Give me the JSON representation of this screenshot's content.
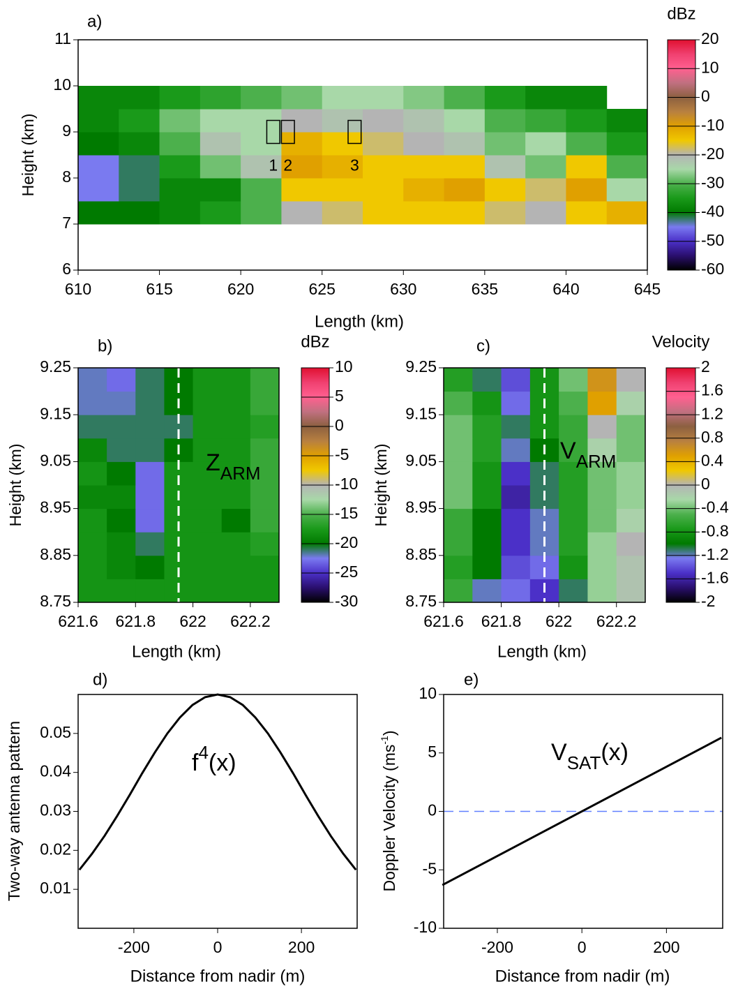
{
  "chart_data": [
    {
      "type": "heatmap",
      "label": "a)",
      "xlabel": "Length (km)",
      "ylabel": "Height (km)",
      "x": [
        611.25,
        613.75,
        616.25,
        618.75,
        621.25,
        623.75,
        626.25,
        628.75,
        631.25,
        633.75,
        636.25,
        638.75,
        641.25,
        643.75
      ],
      "y": [
        7.25,
        7.75,
        8.25,
        8.75,
        9.25,
        9.75
      ],
      "z": [
        [
          -40,
          -40,
          -38,
          -35,
          -30,
          -20,
          -18,
          -15,
          -15,
          -15,
          -18,
          -20,
          -15,
          -12
        ],
        [
          -45,
          -42,
          -38,
          -38,
          -30,
          -15,
          -15,
          -15,
          -12,
          -10,
          -15,
          -18,
          -10,
          -25
        ],
        [
          -45,
          -42,
          -35,
          -28,
          -22,
          -10,
          -12,
          -15,
          -15,
          -15,
          -22,
          -28,
          -15,
          -30
        ],
        [
          -40,
          -38,
          -30,
          -22,
          -25,
          -12,
          -15,
          -18,
          -20,
          -22,
          -28,
          -25,
          -30,
          -35
        ],
        [
          -38,
          -35,
          -28,
          -25,
          -25,
          -20,
          -22,
          -20,
          -22,
          -25,
          -30,
          -32,
          -35,
          -38
        ],
        [
          -38,
          -38,
          -35,
          -33,
          -30,
          -28,
          -25,
          -25,
          -27,
          -30,
          -35,
          -38,
          -38,
          null
        ]
      ],
      "xlim": [
        610,
        645
      ],
      "ylim": [
        6,
        11
      ],
      "xticks": [
        610,
        615,
        620,
        625,
        630,
        635,
        640,
        645
      ],
      "yticks": [
        6,
        7,
        8,
        9,
        10,
        11
      ],
      "boxes": [
        {
          "label": "1",
          "xlim": [
            621.6,
            622.4
          ],
          "ylim": [
            8.75,
            9.25
          ]
        },
        {
          "label": "2",
          "xlim": [
            622.5,
            623.3
          ],
          "ylim": [
            8.75,
            9.25
          ]
        },
        {
          "label": "3",
          "xlim": [
            626.6,
            627.4
          ],
          "ylim": [
            8.75,
            9.25
          ]
        }
      ],
      "colorbar": {
        "label": "dBz",
        "lim": [
          -60,
          20
        ],
        "ticks": [
          -60,
          -50,
          -40,
          -30,
          -20,
          -10,
          0,
          10,
          20
        ],
        "colors": [
          "#000000",
          "#2a0f6e",
          "#4b30c8",
          "#7a7af0",
          "#007a00",
          "#1a9a1a",
          "#4cb04c",
          "#a8d8a8",
          "#b4b4b4",
          "#f0c800",
          "#e0a000",
          "#b88040",
          "#8c6040",
          "#c07080",
          "#ff6090",
          "#f04070",
          "#e01030"
        ]
      }
    },
    {
      "type": "heatmap",
      "label": "b)",
      "xlabel": "Length (km)",
      "ylabel": "Height (km)",
      "annotation": {
        "base": "Z",
        "sub": "ARM"
      },
      "x": [
        621.65,
        621.75,
        621.85,
        621.95,
        622.05,
        622.15,
        622.25
      ],
      "y": [
        8.775,
        8.825,
        8.875,
        8.925,
        8.975,
        9.025,
        9.075,
        9.125,
        9.175,
        9.225
      ],
      "z": [
        [
          -18,
          -18,
          -18,
          -18,
          -18,
          -18,
          -18
        ],
        [
          -18,
          -19,
          -20,
          -18,
          -18,
          -18,
          -18
        ],
        [
          -18,
          -19,
          -21,
          -18,
          -18,
          -18,
          -17
        ],
        [
          -18,
          -20,
          -23,
          -18,
          -18,
          -20,
          -16
        ],
        [
          -19,
          -19,
          -23,
          -18,
          -18,
          -18,
          -16
        ],
        [
          -18,
          -20,
          -23,
          -18,
          -18,
          -18,
          -16
        ],
        [
          -19,
          -21,
          -21,
          -20,
          -18,
          -18,
          -16
        ],
        [
          -21,
          -21,
          -21,
          -21,
          -18,
          -18,
          -17
        ],
        [
          -22,
          -22,
          -21,
          -20,
          -18,
          -18,
          -16
        ],
        [
          -22,
          -23,
          -21,
          -20,
          -18,
          -18,
          -16
        ]
      ],
      "xlim": [
        621.6,
        622.3
      ],
      "ylim": [
        8.75,
        9.25
      ],
      "xticks": [
        621.6,
        621.8,
        622,
        622.2
      ],
      "yticks": [
        8.75,
        8.85,
        8.95,
        9.05,
        9.15,
        9.25
      ],
      "vline": {
        "value": 621.95,
        "color": "#ffffff"
      },
      "colorbar": {
        "label": "dBz",
        "lim": [
          -30,
          10
        ],
        "ticks": [
          -30,
          -25,
          -20,
          -15,
          -10,
          -5,
          0,
          5,
          10
        ],
        "colors": [
          "#000000",
          "#2a0f6e",
          "#4b30c8",
          "#7a7af0",
          "#007a00",
          "#1a9a1a",
          "#4cb04c",
          "#a8d8a8",
          "#b4b4b4",
          "#f0c800",
          "#e0a000",
          "#b88040",
          "#8c6040",
          "#c07080",
          "#ff6090",
          "#f04070",
          "#e01030"
        ]
      }
    },
    {
      "type": "heatmap",
      "label": "c)",
      "xlabel": "Length (km)",
      "ylabel": "Height (km)",
      "annotation": {
        "base": "V",
        "sub": "ARM"
      },
      "x": [
        621.65,
        621.75,
        621.85,
        621.95,
        622.05,
        622.15,
        622.25
      ],
      "y": [
        8.775,
        8.825,
        8.875,
        8.925,
        8.975,
        9.025,
        9.075,
        9.125,
        9.175,
        9.225
      ],
      "z": [
        [
          -0.6,
          -1.2,
          -1.3,
          -1.5,
          -1.1,
          -0.3,
          -0.1
        ],
        [
          -0.7,
          -1.0,
          -1.4,
          -1.3,
          -0.8,
          -0.3,
          -0.1
        ],
        [
          -0.6,
          -1.0,
          -1.5,
          -1.2,
          -0.7,
          -0.3,
          0
        ],
        [
          -0.6,
          -1.0,
          -1.5,
          -1.2,
          -0.7,
          -0.4,
          -0.2
        ],
        [
          -0.4,
          -0.8,
          -1.6,
          -1.1,
          -0.7,
          -0.4,
          -0.3
        ],
        [
          -0.4,
          -0.8,
          -1.5,
          -1.1,
          -0.7,
          -0.4,
          -0.3
        ],
        [
          -0.4,
          -0.7,
          -1.2,
          -1.0,
          -0.6,
          -0.2,
          -0.4
        ],
        [
          -0.4,
          -0.7,
          -1.1,
          -0.8,
          -0.6,
          0,
          -0.4
        ],
        [
          -0.5,
          -0.8,
          -1.3,
          -0.8,
          -0.5,
          0.5,
          -0.2
        ],
        [
          -0.7,
          -1.1,
          -1.4,
          -0.8,
          -0.4,
          0.6,
          0
        ]
      ],
      "xlim": [
        621.6,
        622.3
      ],
      "ylim": [
        8.75,
        9.25
      ],
      "xticks": [
        621.6,
        621.8,
        622,
        622.2
      ],
      "yticks": [
        8.75,
        8.85,
        8.95,
        9.05,
        9.15,
        9.25
      ],
      "vline": {
        "value": 621.95,
        "color": "#ffffff"
      },
      "colorbar": {
        "label": "Velocity",
        "lim": [
          -2,
          2
        ],
        "ticks": [
          -2,
          -1.6,
          -1.2,
          -0.8,
          -0.4,
          0,
          0.4,
          0.8,
          1.2,
          1.6,
          2
        ],
        "colors": [
          "#000000",
          "#2a0f6e",
          "#4b30c8",
          "#7a7af0",
          "#007a00",
          "#1a9a1a",
          "#4cb04c",
          "#a8d8a8",
          "#b4b4b4",
          "#f0c800",
          "#e0a000",
          "#b88040",
          "#8c6040",
          "#c07080",
          "#ff6090",
          "#f04070",
          "#e01030"
        ]
      }
    },
    {
      "type": "line",
      "label": "d)",
      "xlabel": "Distance from nadir (m)",
      "ylabel": "Two-way antenna pattern",
      "annotation": {
        "base": "f",
        "sup": "4",
        "rest": "(x)"
      },
      "x": [
        -330,
        -300,
        -270,
        -240,
        -210,
        -180,
        -150,
        -120,
        -90,
        -60,
        -30,
        0,
        30,
        60,
        90,
        120,
        150,
        180,
        210,
        240,
        270,
        300,
        330
      ],
      "values": [
        0.015,
        0.0191,
        0.0237,
        0.0288,
        0.0342,
        0.0398,
        0.0451,
        0.05,
        0.0541,
        0.0573,
        0.0593,
        0.06,
        0.0593,
        0.0573,
        0.0541,
        0.05,
        0.0451,
        0.0398,
        0.0342,
        0.0288,
        0.0237,
        0.0191,
        0.015
      ],
      "color": "#000000",
      "xlim": [
        -333,
        333
      ],
      "ylim": [
        0,
        0.06
      ],
      "xticks": [
        -200,
        0,
        200
      ],
      "yticks": [
        0.01,
        0.02,
        0.03,
        0.04,
        0.05
      ]
    },
    {
      "type": "line",
      "label": "e)",
      "xlabel": "Distance from nadir (m)",
      "ylabel": {
        "base": "Doppler Velocity (ms",
        "sup": "-1",
        "rest": ")"
      },
      "annotation": {
        "base": "V",
        "sub": "SAT",
        "rest": "(x)"
      },
      "x": [
        -330,
        330
      ],
      "values": [
        -6.3,
        6.3
      ],
      "color": "#000000",
      "hline": {
        "value": 0,
        "color": "#6080ff"
      },
      "xlim": [
        -327,
        333
      ],
      "ylim": [
        -10,
        10
      ],
      "xticks": [
        -200,
        0,
        200
      ],
      "yticks": [
        -10,
        -5,
        0,
        5,
        10
      ]
    }
  ]
}
